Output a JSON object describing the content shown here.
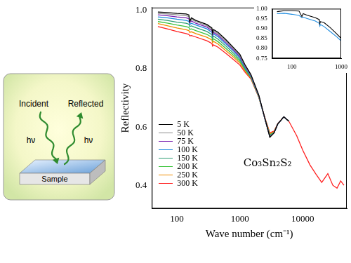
{
  "diagram": {
    "incident": "Incident",
    "reflected": "Reflected",
    "photon_in": "hν",
    "photon_out": "hν",
    "sample": "Sample"
  },
  "chart_data": [
    {
      "type": "line",
      "x_label": "Wave number (cm⁻¹)",
      "y_label": "Reflectivity",
      "annotations": [
        "Co₃Sn₂S₂"
      ],
      "log": "x",
      "grid": false,
      "legend": "left",
      "xlim": [
        40,
        50000
      ],
      "ylim": [
        0.32,
        1.01
      ],
      "xticks": [
        100,
        1000,
        10000
      ],
      "yticks": [
        0.4,
        0.6,
        0.8,
        {
          "value": 1,
          "label": "1.0"
        }
      ],
      "x": [
        50,
        70,
        100,
        140,
        155,
        160,
        170,
        200,
        300,
        360,
        370,
        380,
        450,
        600,
        800,
        1000,
        1200,
        1500,
        2000,
        2500,
        3000,
        3500,
        4000,
        5000,
        6000,
        8000,
        10000,
        13000,
        16000,
        20000,
        25000,
        30000,
        35000,
        40000,
        45000
      ],
      "series": [
        {
          "name": "5 K",
          "color": "#000000",
          "values": [
            0.995,
            0.993,
            0.99,
            0.988,
            0.985,
            0.962,
            0.975,
            0.966,
            0.952,
            0.94,
            0.922,
            0.935,
            0.925,
            0.9,
            0.872,
            0.85,
            0.815,
            0.78,
            0.71,
            0.63,
            0.565,
            0.58,
            0.61,
            0.635,
            0.62,
            null,
            null,
            null,
            null,
            null,
            null,
            null,
            null,
            null,
            null
          ]
        },
        {
          "name": "50 K",
          "color": "#8c8c8c",
          "values": [
            0.99,
            0.988,
            0.985,
            0.982,
            0.98,
            0.962,
            0.97,
            0.962,
            0.948,
            0.936,
            0.92,
            0.93,
            0.92,
            0.895,
            0.868,
            0.846,
            0.812,
            0.778,
            0.708,
            0.628,
            0.566,
            0.58,
            0.61,
            0.635,
            0.62,
            null,
            null,
            null,
            null,
            null,
            null,
            null,
            null,
            null,
            null
          ]
        },
        {
          "name": "75 K",
          "color": "#7a1fb0",
          "values": [
            0.985,
            0.982,
            0.978,
            0.975,
            0.972,
            0.958,
            0.964,
            0.956,
            0.943,
            0.931,
            0.916,
            0.925,
            0.915,
            0.89,
            0.864,
            0.842,
            0.809,
            0.776,
            0.707,
            0.628,
            0.567,
            0.58,
            0.61,
            0.635,
            0.62,
            null,
            null,
            null,
            null,
            null,
            null,
            null,
            null,
            null,
            null
          ]
        },
        {
          "name": "100 K",
          "color": "#1e8ce0",
          "values": [
            0.978,
            0.975,
            0.97,
            0.966,
            0.963,
            0.952,
            0.956,
            0.95,
            0.937,
            0.925,
            0.912,
            0.92,
            0.91,
            0.885,
            0.86,
            0.838,
            0.806,
            0.774,
            0.706,
            0.628,
            0.568,
            0.58,
            0.61,
            0.635,
            0.62,
            null,
            null,
            null,
            null,
            null,
            null,
            null,
            null,
            null,
            null
          ]
        },
        {
          "name": "150 K",
          "color": "#2e9e73",
          "values": [
            0.97,
            0.966,
            0.96,
            0.956,
            0.953,
            0.945,
            0.947,
            0.941,
            0.928,
            0.917,
            0.905,
            0.912,
            0.902,
            0.878,
            0.853,
            0.832,
            0.802,
            0.772,
            0.705,
            0.628,
            0.57,
            0.581,
            0.61,
            0.635,
            0.62,
            null,
            null,
            null,
            null,
            null,
            null,
            null,
            null,
            null,
            null
          ]
        },
        {
          "name": "200 K",
          "color": "#3cc43c",
          "values": [
            0.962,
            0.957,
            0.95,
            0.945,
            0.942,
            0.935,
            0.937,
            0.931,
            0.918,
            0.908,
            0.897,
            0.903,
            0.893,
            0.87,
            0.846,
            0.826,
            0.798,
            0.77,
            0.704,
            0.629,
            0.573,
            0.582,
            0.61,
            0.635,
            0.62,
            null,
            null,
            null,
            null,
            null,
            null,
            null,
            null,
            null,
            null
          ]
        },
        {
          "name": "250 K",
          "color": "#f08c00",
          "values": [
            0.955,
            0.948,
            0.94,
            0.934,
            0.931,
            0.925,
            0.927,
            0.921,
            0.908,
            0.899,
            0.889,
            0.894,
            0.885,
            0.862,
            0.839,
            0.82,
            0.794,
            0.768,
            0.703,
            0.63,
            0.576,
            0.584,
            0.611,
            0.635,
            0.62,
            null,
            null,
            null,
            null,
            null,
            null,
            null,
            null,
            null,
            null
          ]
        },
        {
          "name": "300 K",
          "color": "#ff2020",
          "values": [
            0.945,
            0.937,
            0.928,
            0.921,
            0.918,
            0.913,
            0.914,
            0.909,
            0.896,
            0.887,
            0.878,
            0.882,
            0.874,
            0.853,
            0.831,
            0.813,
            0.789,
            0.765,
            0.702,
            0.632,
            0.58,
            0.586,
            0.612,
            0.635,
            0.62,
            0.57,
            0.52,
            0.47,
            0.44,
            0.41,
            0.44,
            0.4,
            0.39,
            0.415,
            0.4
          ]
        }
      ]
    },
    {
      "type": "line",
      "log": "x",
      "grid": false,
      "xlim": [
        40,
        1000
      ],
      "ylim": [
        0.75,
        1.0
      ],
      "xticks": [
        100,
        1000
      ],
      "yticks": [
        0.75,
        {
          "value": 0.8,
          "label": "0.80"
        },
        0.85,
        {
          "value": 0.9,
          "label": "0.90"
        },
        0.95,
        {
          "value": 1,
          "label": "1.00"
        }
      ],
      "x": [
        50,
        70,
        100,
        140,
        160,
        170,
        200,
        300,
        360,
        370,
        380,
        450,
        600,
        800,
        1000
      ],
      "series": [
        {
          "color": "#000000",
          "values": [
            0.985,
            0.99,
            0.99,
            0.988,
            0.96,
            0.975,
            0.968,
            0.955,
            0.945,
            0.925,
            0.935,
            0.93,
            0.905,
            0.875,
            0.85
          ]
        },
        {
          "color": "#1e8ce0",
          "values": [
            0.975,
            0.977,
            0.972,
            0.966,
            0.955,
            0.958,
            0.951,
            0.938,
            0.926,
            0.912,
            0.92,
            0.91,
            0.885,
            0.86,
            0.838
          ]
        }
      ]
    }
  ]
}
